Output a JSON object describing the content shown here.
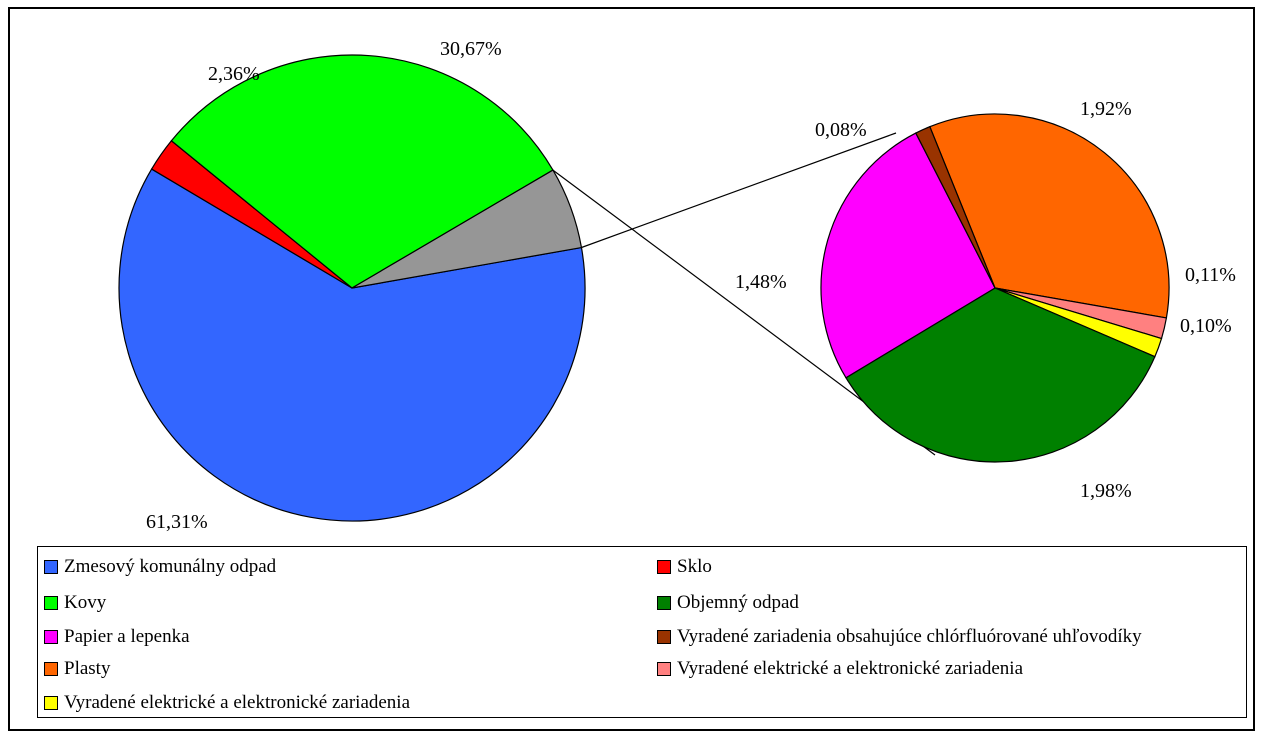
{
  "chart_data": [
    {
      "type": "pie",
      "name": "main",
      "slices": [
        {
          "label": "Zmesový komunálny odpad",
          "value": 61.31,
          "value_label": "61,31%",
          "color": "#3366FF"
        },
        {
          "label": "Sklo",
          "value": 2.36,
          "value_label": "2,36%",
          "color": "#FF0000"
        },
        {
          "label": "Kovy",
          "value": 30.67,
          "value_label": "30,67%",
          "color": "#00FF00"
        },
        {
          "label": "",
          "value": 5.67,
          "value_label": "",
          "color": "#969696"
        }
      ]
    },
    {
      "type": "pie",
      "name": "detail",
      "slices": [
        {
          "label": "Plasty",
          "value": 1.92,
          "value_label": "1,92%",
          "color": "#FF6600"
        },
        {
          "label": "Vyradené elektrické a elektronické zariadenia",
          "value": 0.11,
          "value_label": "0,11%",
          "color": "#FF8080"
        },
        {
          "label": "Vyradené elektrické a elektronické zariadenia",
          "value": 0.1,
          "value_label": "0,10%",
          "color": "#FFFF00"
        },
        {
          "label": "Objemný odpad",
          "value": 1.98,
          "value_label": "1,98%",
          "color": "#008000"
        },
        {
          "label": "Papier a lepenka",
          "value": 1.48,
          "value_label": "1,48%",
          "color": "#FF00FF"
        },
        {
          "label": "Vyradené zariadenia obsahujúce chlórfluórované uhľovodíky",
          "value": 0.08,
          "value_label": "0,08%",
          "color": "#993300"
        }
      ]
    }
  ],
  "legend": {
    "items": [
      {
        "label": "Zmesový komunálny odpad",
        "color": "#3366FF"
      },
      {
        "label": "Sklo",
        "color": "#FF0000"
      },
      {
        "label": "Kovy",
        "color": "#00FF00"
      },
      {
        "label": "Objemný odpad",
        "color": "#008000"
      },
      {
        "label": "Papier a lepenka",
        "color": "#FF00FF"
      },
      {
        "label": "Vyradené zariadenia obsahujúce chlórfluórované uhľovodíky",
        "color": "#993300"
      },
      {
        "label": "Plasty",
        "color": "#FF6600"
      },
      {
        "label": "Vyradené elektrické a elektronické zariadenia",
        "color": "#FF8080"
      },
      {
        "label": "Vyradené elektrické a elektronické zariadenia",
        "color": "#FFFF00"
      }
    ]
  }
}
